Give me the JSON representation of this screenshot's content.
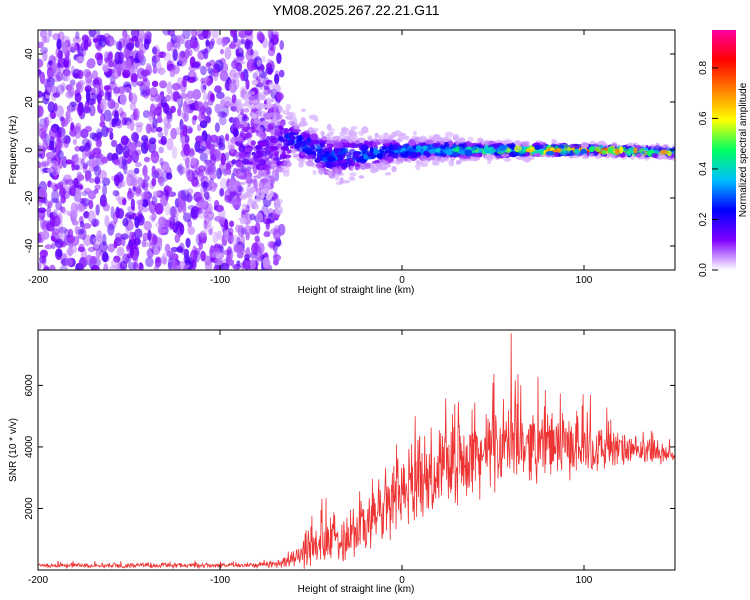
{
  "title": "YM08.2025.267.22.21.G11",
  "chart_data": [
    {
      "type": "heatmap",
      "title": "YM08.2025.267.22.21.G11",
      "xlabel": "Height of straight line (km)",
      "ylabel": "Frequency (Hz)",
      "xlim": [
        -200,
        150
      ],
      "ylim": [
        -50,
        50
      ],
      "xticks": [
        -200,
        -100,
        0,
        100
      ],
      "yticks": [
        -40,
        -20,
        0,
        20,
        40
      ],
      "colorbar": {
        "label": "Normalized spectral amplitude",
        "range": [
          0,
          0.95
        ],
        "ticks": [
          0.0,
          0.2,
          0.4,
          0.6,
          0.8
        ],
        "colormap": [
          "#ffffff",
          "#8000ff",
          "#0000ff",
          "#00c0ff",
          "#00ff60",
          "#ffff00",
          "#ff8000",
          "#ff0000",
          "#ff00a0"
        ]
      },
      "description_points": [
        {
          "x": -200,
          "noise_band": [
            -50,
            50
          ],
          "peak_amp": 0.15
        },
        {
          "x": -70,
          "noise_band": [
            -50,
            50
          ],
          "peak_amp": 0.15
        },
        {
          "x": -60,
          "line_center": 5,
          "line_halfwidth": 8,
          "peak_amp": 0.3
        },
        {
          "x": -40,
          "line_center": -3,
          "line_halfwidth": 10,
          "peak_amp": 0.3
        },
        {
          "x": 0,
          "line_center": 0,
          "line_halfwidth": 5,
          "peak_amp": 0.35
        },
        {
          "x": 50,
          "line_center": 0,
          "line_halfwidth": 3,
          "peak_amp": 0.55
        },
        {
          "x": 100,
          "line_center": 0,
          "line_halfwidth": 2,
          "peak_amp": 0.9
        },
        {
          "x": 150,
          "line_center": -1,
          "line_halfwidth": 2,
          "peak_amp": 0.6
        }
      ]
    },
    {
      "type": "line",
      "xlabel": "Height of straight line (km)",
      "ylabel": "SNR (10 * v/v)",
      "xlim": [
        -200,
        150
      ],
      "ylim": [
        0,
        7800
      ],
      "xticks": [
        -200,
        -100,
        0,
        100
      ],
      "yticks": [
        2000,
        4000,
        6000
      ],
      "color": "#ee3333",
      "x": [
        -200,
        -150,
        -100,
        -80,
        -70,
        -60,
        -50,
        -40,
        -30,
        -20,
        -10,
        0,
        10,
        20,
        30,
        40,
        50,
        60,
        70,
        80,
        90,
        100,
        110,
        120,
        130,
        140,
        150
      ],
      "mean": [
        150,
        150,
        150,
        160,
        200,
        350,
        700,
        900,
        1200,
        1500,
        2000,
        2600,
        3000,
        3300,
        3500,
        3700,
        3900,
        4050,
        4100,
        4100,
        4050,
        4000,
        3950,
        3900,
        3850,
        3800,
        3750
      ],
      "amp": [
        90,
        90,
        90,
        100,
        150,
        350,
        700,
        1000,
        1100,
        1300,
        1500,
        1500,
        1500,
        1500,
        1500,
        1500,
        1500,
        1500,
        1400,
        1300,
        1200,
        1100,
        900,
        700,
        500,
        400,
        300
      ],
      "peak": {
        "x": 60,
        "y": 7700
      }
    }
  ]
}
